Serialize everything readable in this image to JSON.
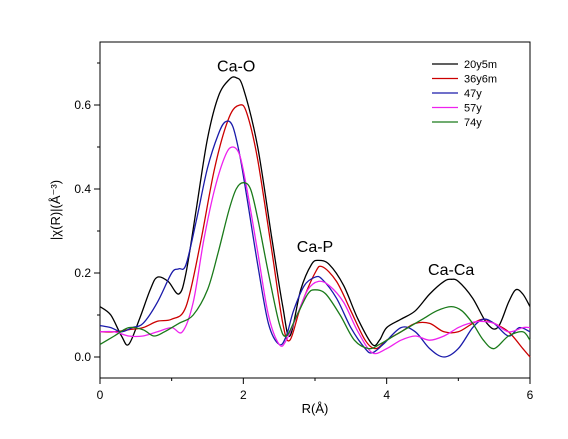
{
  "chart_data": {
    "type": "line",
    "xlabel": "R(Å)",
    "ylabel": "|χ(R)|(Å⁻³)",
    "xlim": [
      0,
      6
    ],
    "ylim": [
      -0.05,
      0.75
    ],
    "xticks": [
      "0",
      "2",
      "4",
      "6"
    ],
    "yticks": [
      "0.0",
      "0.2",
      "0.4",
      "0.6"
    ],
    "xtick_values": [
      0,
      2,
      4,
      6
    ],
    "ytick_values": [
      0.0,
      0.2,
      0.4,
      0.6
    ],
    "grid": false,
    "legend_position": "top-right",
    "annotations": [
      {
        "text": "Ca-O",
        "x": 1.9,
        "y": 0.68
      },
      {
        "text": "Ca-P",
        "x": 3.0,
        "y": 0.25
      },
      {
        "text": "Ca-Ca",
        "x": 4.9,
        "y": 0.195
      }
    ],
    "series": [
      {
        "name": "20y5m",
        "color": "#000000",
        "x": [
          0,
          0.15,
          0.3,
          0.4,
          0.55,
          0.7,
          0.8,
          0.95,
          1.1,
          1.2,
          1.35,
          1.5,
          1.65,
          1.8,
          1.9,
          2.0,
          2.2,
          2.4,
          2.55,
          2.65,
          2.8,
          2.95,
          3.05,
          3.2,
          3.4,
          3.6,
          3.8,
          3.9,
          4.0,
          4.2,
          4.4,
          4.6,
          4.8,
          4.9,
          5.0,
          5.2,
          5.4,
          5.55,
          5.7,
          5.8,
          5.9,
          6.0
        ],
        "y": [
          0.12,
          0.1,
          0.05,
          0.03,
          0.09,
          0.16,
          0.19,
          0.18,
          0.15,
          0.2,
          0.36,
          0.52,
          0.62,
          0.66,
          0.665,
          0.64,
          0.5,
          0.28,
          0.12,
          0.05,
          0.16,
          0.22,
          0.23,
          0.22,
          0.17,
          0.09,
          0.03,
          0.04,
          0.07,
          0.09,
          0.11,
          0.15,
          0.18,
          0.185,
          0.18,
          0.14,
          0.08,
          0.07,
          0.13,
          0.16,
          0.15,
          0.12
        ]
      },
      {
        "name": "36y6m",
        "color": "#cc0000",
        "x": [
          0,
          0.2,
          0.4,
          0.6,
          0.8,
          1.0,
          1.2,
          1.4,
          1.6,
          1.8,
          1.95,
          2.05,
          2.2,
          2.4,
          2.55,
          2.65,
          2.8,
          3.0,
          3.1,
          3.3,
          3.5,
          3.7,
          3.85,
          4.0,
          4.2,
          4.4,
          4.6,
          4.8,
          5.0,
          5.2,
          5.35,
          5.5,
          5.7,
          5.9,
          6.0
        ],
        "y": [
          0.06,
          0.06,
          0.065,
          0.07,
          0.085,
          0.09,
          0.12,
          0.27,
          0.45,
          0.57,
          0.6,
          0.58,
          0.47,
          0.25,
          0.08,
          0.04,
          0.12,
          0.2,
          0.215,
          0.18,
          0.11,
          0.04,
          0.02,
          0.04,
          0.06,
          0.08,
          0.08,
          0.06,
          0.06,
          0.08,
          0.09,
          0.08,
          0.06,
          0.02,
          0.0
        ]
      },
      {
        "name": "47y",
        "color": "#1a1aaa",
        "x": [
          0,
          0.15,
          0.3,
          0.45,
          0.6,
          0.8,
          1.0,
          1.1,
          1.2,
          1.35,
          1.5,
          1.65,
          1.75,
          1.85,
          1.95,
          2.05,
          2.2,
          2.35,
          2.5,
          2.6,
          2.7,
          2.85,
          3.0,
          3.1,
          3.3,
          3.5,
          3.7,
          3.8,
          3.95,
          4.2,
          4.4,
          4.6,
          4.8,
          5.0,
          5.2,
          5.35,
          5.5,
          5.7,
          5.85,
          6.0
        ],
        "y": [
          0.075,
          0.07,
          0.06,
          0.07,
          0.08,
          0.13,
          0.2,
          0.21,
          0.22,
          0.33,
          0.45,
          0.53,
          0.56,
          0.55,
          0.48,
          0.38,
          0.22,
          0.08,
          0.03,
          0.05,
          0.11,
          0.17,
          0.19,
          0.185,
          0.14,
          0.07,
          0.02,
          0.01,
          0.03,
          0.07,
          0.06,
          0.02,
          0.0,
          0.02,
          0.07,
          0.09,
          0.08,
          0.05,
          0.07,
          0.06
        ]
      },
      {
        "name": "57y",
        "color": "#ee22ee",
        "x": [
          0,
          0.2,
          0.4,
          0.6,
          0.8,
          1.0,
          1.15,
          1.3,
          1.45,
          1.6,
          1.75,
          1.85,
          1.95,
          2.05,
          2.2,
          2.35,
          2.5,
          2.6,
          2.75,
          2.9,
          3.05,
          3.2,
          3.4,
          3.6,
          3.8,
          4.0,
          4.2,
          4.4,
          4.6,
          4.8,
          5.0,
          5.15,
          5.3,
          5.5,
          5.7,
          5.9,
          6.0
        ],
        "y": [
          0.06,
          0.06,
          0.05,
          0.05,
          0.06,
          0.07,
          0.06,
          0.13,
          0.28,
          0.4,
          0.48,
          0.5,
          0.48,
          0.4,
          0.25,
          0.1,
          0.03,
          0.04,
          0.1,
          0.16,
          0.18,
          0.17,
          0.13,
          0.06,
          0.01,
          0.02,
          0.04,
          0.05,
          0.04,
          0.05,
          0.07,
          0.08,
          0.085,
          0.08,
          0.06,
          0.07,
          0.07
        ]
      },
      {
        "name": "74y",
        "color": "#1a7a1a",
        "x": [
          0,
          0.2,
          0.4,
          0.6,
          0.75,
          0.9,
          1.1,
          1.3,
          1.5,
          1.65,
          1.8,
          1.9,
          2.0,
          2.1,
          2.2,
          2.35,
          2.5,
          2.6,
          2.75,
          2.9,
          3.0,
          3.15,
          3.35,
          3.55,
          3.75,
          3.9,
          4.1,
          4.3,
          4.5,
          4.7,
          4.9,
          5.05,
          5.2,
          5.35,
          5.5,
          5.7,
          5.9,
          6.0
        ],
        "y": [
          0.03,
          0.05,
          0.07,
          0.065,
          0.05,
          0.06,
          0.08,
          0.1,
          0.16,
          0.25,
          0.35,
          0.4,
          0.415,
          0.4,
          0.33,
          0.2,
          0.08,
          0.05,
          0.1,
          0.15,
          0.16,
          0.15,
          0.1,
          0.04,
          0.02,
          0.03,
          0.05,
          0.07,
          0.09,
          0.11,
          0.12,
          0.11,
          0.08,
          0.04,
          0.02,
          0.05,
          0.06,
          0.04
        ]
      }
    ]
  }
}
